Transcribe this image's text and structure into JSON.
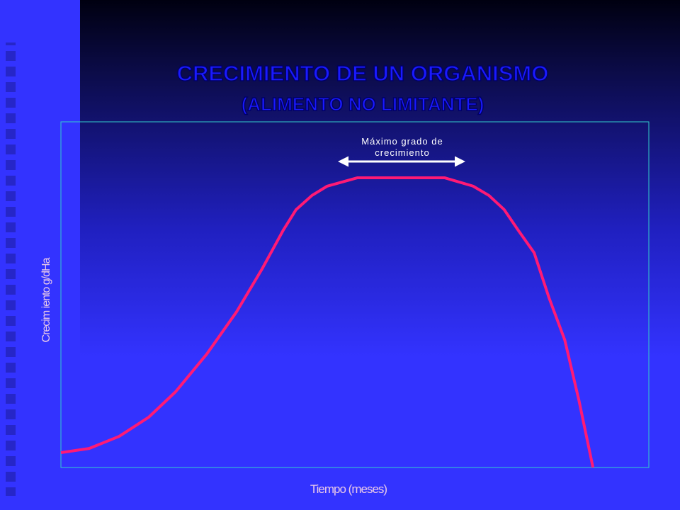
{
  "chart_data": {
    "type": "line",
    "title": "CRECIMIENTO DE UN ORGANISMO",
    "subtitle": "(ALIMENTO NO LIMITANTE)",
    "x_label": "Tiempo (meses)",
    "y_label": "Crecim iento g/dHa",
    "annotation": "Máximo grado de crecimiento",
    "xlim": [
      0,
      100
    ],
    "ylim": [
      0,
      100
    ],
    "series": [
      {
        "color": "#ff1a75",
        "x": [
          0,
          4.8,
          9.9,
          14.9,
          19.5,
          24.8,
          29.9,
          34.2,
          37.8,
          40,
          42.7,
          45.3,
          50.4,
          55.4,
          60.5,
          65.3,
          70.1,
          72.8,
          75.4,
          77.8,
          80.5,
          83,
          85.7,
          88.1,
          90.5
        ],
        "values": [
          4.3,
          5.5,
          9,
          14.5,
          21.9,
          32.8,
          45.1,
          57.4,
          68.6,
          74.6,
          78.7,
          81.4,
          83.8,
          83.8,
          83.8,
          83.8,
          81.4,
          78.7,
          74.6,
          68.6,
          62.1,
          49.2,
          36.9,
          19.5,
          0
        ]
      }
    ]
  }
}
